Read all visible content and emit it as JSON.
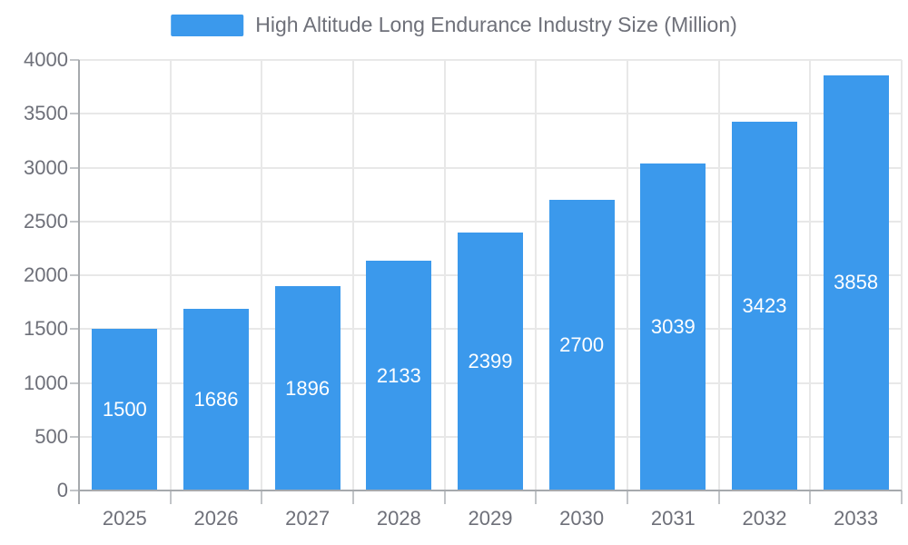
{
  "chart_data": {
    "type": "bar",
    "series_name": "High Altitude Long Endurance Industry Size (Million)",
    "categories": [
      "2025",
      "2026",
      "2027",
      "2028",
      "2029",
      "2030",
      "2031",
      "2032",
      "2033"
    ],
    "values": [
      1500,
      1686,
      1896,
      2133,
      2399,
      2700,
      3039,
      3423,
      3858
    ],
    "value_labels_visible": true,
    "xlabel": "",
    "ylabel": "",
    "ylim": [
      0,
      4000
    ],
    "ytick_interval": 500,
    "yticks": [
      0,
      500,
      1000,
      1500,
      2000,
      2500,
      3000,
      3500,
      4000
    ],
    "legend_position": "top",
    "grid": true,
    "colors": {
      "bar": "#3B99EC",
      "value_label": "#FFFFFF",
      "axis_text": "#6E7079",
      "axis_line": "#A6A9AD",
      "tick_line": "#C2C5C8",
      "grid_line": "#E8E8E8",
      "background": "#FFFFFF"
    }
  }
}
